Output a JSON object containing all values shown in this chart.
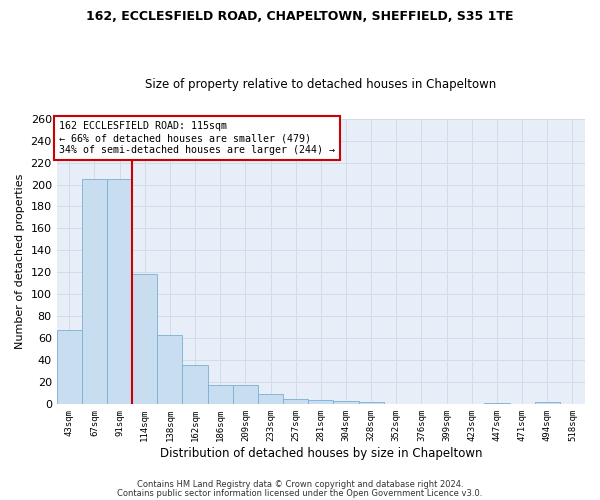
{
  "title1": "162, ECCLESFIELD ROAD, CHAPELTOWN, SHEFFIELD, S35 1TE",
  "title2": "Size of property relative to detached houses in Chapeltown",
  "xlabel": "Distribution of detached houses by size in Chapeltown",
  "ylabel": "Number of detached properties",
  "categories": [
    "43sqm",
    "67sqm",
    "91sqm",
    "114sqm",
    "138sqm",
    "162sqm",
    "186sqm",
    "209sqm",
    "233sqm",
    "257sqm",
    "281sqm",
    "304sqm",
    "328sqm",
    "352sqm",
    "376sqm",
    "399sqm",
    "423sqm",
    "447sqm",
    "471sqm",
    "494sqm",
    "518sqm"
  ],
  "bar_values": [
    68,
    205,
    205,
    119,
    63,
    36,
    18,
    18,
    9,
    5,
    4,
    3,
    2,
    0,
    0,
    0,
    0,
    1,
    0,
    2,
    0
  ],
  "bar_color": "#c9ddf0",
  "bar_edge_color": "#7aafd4",
  "vline_color": "#cc0000",
  "annotation_text": "162 ECCLESFIELD ROAD: 115sqm\n← 66% of detached houses are smaller (479)\n34% of semi-detached houses are larger (244) →",
  "annotation_box_color": "#ffffff",
  "annotation_box_edge": "#cc0000",
  "ylim": [
    0,
    260
  ],
  "yticks": [
    0,
    20,
    40,
    60,
    80,
    100,
    120,
    140,
    160,
    180,
    200,
    220,
    240,
    260
  ],
  "footer1": "Contains HM Land Registry data © Crown copyright and database right 2024.",
  "footer2": "Contains public sector information licensed under the Open Government Licence v3.0.",
  "grid_color": "#d0dcea",
  "background_color": "#ffffff",
  "plot_bg_color": "#e8eef8",
  "vline_bin_index": 3
}
